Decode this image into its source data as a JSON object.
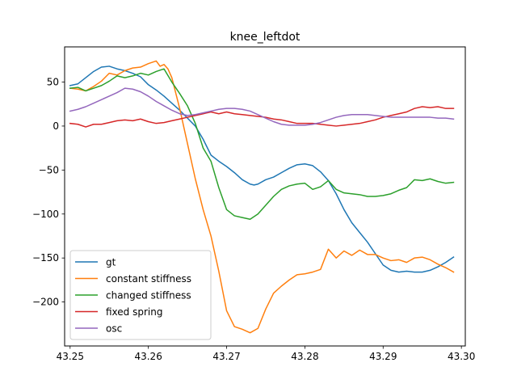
{
  "chart_data": {
    "type": "line",
    "title": "knee_leftdot",
    "xlabel": "",
    "ylabel": "",
    "xlim": [
      43.2493,
      43.3005
    ],
    "ylim": [
      -250,
      90
    ],
    "xticks": [
      43.25,
      43.26,
      43.27,
      43.28,
      43.29,
      43.3
    ],
    "xtick_labels": [
      "43.25",
      "43.26",
      "43.27",
      "43.28",
      "43.29",
      "43.30"
    ],
    "yticks": [
      50,
      0,
      -50,
      -100,
      -150,
      -200
    ],
    "ytick_labels": [
      "50",
      "0",
      "−50",
      "−100",
      "−150",
      "−200"
    ],
    "grid": false,
    "legend_position": "lower-left",
    "series": [
      {
        "name": "gt",
        "color": "#1f77b4",
        "points": [
          [
            43.25,
            46
          ],
          [
            43.251,
            48
          ],
          [
            43.252,
            55
          ],
          [
            43.253,
            62
          ],
          [
            43.254,
            67
          ],
          [
            43.255,
            68
          ],
          [
            43.256,
            65
          ],
          [
            43.257,
            63
          ],
          [
            43.258,
            60
          ],
          [
            43.259,
            56
          ],
          [
            43.26,
            47
          ],
          [
            43.261,
            41
          ],
          [
            43.262,
            34
          ],
          [
            43.263,
            26
          ],
          [
            43.264,
            18
          ],
          [
            43.265,
            9
          ],
          [
            43.266,
            0
          ],
          [
            43.267,
            -15
          ],
          [
            43.268,
            -33
          ],
          [
            43.269,
            -40
          ],
          [
            43.27,
            -46
          ],
          [
            43.271,
            -53
          ],
          [
            43.272,
            -61
          ],
          [
            43.273,
            -66
          ],
          [
            43.2735,
            -67
          ],
          [
            43.274,
            -66
          ],
          [
            43.275,
            -61
          ],
          [
            43.276,
            -58
          ],
          [
            43.277,
            -53
          ],
          [
            43.278,
            -48
          ],
          [
            43.279,
            -44
          ],
          [
            43.28,
            -43
          ],
          [
            43.281,
            -45
          ],
          [
            43.282,
            -52
          ],
          [
            43.283,
            -62
          ],
          [
            43.284,
            -77
          ],
          [
            43.285,
            -95
          ],
          [
            43.286,
            -110
          ],
          [
            43.287,
            -121
          ],
          [
            43.288,
            -132
          ],
          [
            43.289,
            -145
          ],
          [
            43.29,
            -158
          ],
          [
            43.291,
            -164
          ],
          [
            43.292,
            -166
          ],
          [
            43.293,
            -165
          ],
          [
            43.294,
            -166
          ],
          [
            43.295,
            -166
          ],
          [
            43.296,
            -164
          ],
          [
            43.297,
            -160
          ],
          [
            43.298,
            -155
          ],
          [
            43.299,
            -149
          ]
        ]
      },
      {
        "name": "constant stiffness",
        "color": "#ff7f0e",
        "points": [
          [
            43.25,
            43
          ],
          [
            43.251,
            42
          ],
          [
            43.252,
            40
          ],
          [
            43.253,
            45
          ],
          [
            43.254,
            51
          ],
          [
            43.255,
            60
          ],
          [
            43.256,
            58
          ],
          [
            43.257,
            63
          ],
          [
            43.258,
            66
          ],
          [
            43.259,
            67
          ],
          [
            43.26,
            71
          ],
          [
            43.261,
            74
          ],
          [
            43.2615,
            68
          ],
          [
            43.262,
            70
          ],
          [
            43.2625,
            65
          ],
          [
            43.263,
            55
          ],
          [
            43.264,
            20
          ],
          [
            43.265,
            -20
          ],
          [
            43.266,
            -60
          ],
          [
            43.267,
            -95
          ],
          [
            43.268,
            -125
          ],
          [
            43.269,
            -165
          ],
          [
            43.27,
            -210
          ],
          [
            43.271,
            -228
          ],
          [
            43.272,
            -231
          ],
          [
            43.273,
            -235
          ],
          [
            43.274,
            -230
          ],
          [
            43.275,
            -208
          ],
          [
            43.276,
            -190
          ],
          [
            43.277,
            -182
          ],
          [
            43.278,
            -175
          ],
          [
            43.279,
            -169
          ],
          [
            43.28,
            -168
          ],
          [
            43.281,
            -166
          ],
          [
            43.282,
            -163
          ],
          [
            43.283,
            -140
          ],
          [
            43.284,
            -150
          ],
          [
            43.285,
            -142
          ],
          [
            43.286,
            -147
          ],
          [
            43.287,
            -141
          ],
          [
            43.288,
            -146
          ],
          [
            43.289,
            -146
          ],
          [
            43.29,
            -150
          ],
          [
            43.291,
            -153
          ],
          [
            43.292,
            -152
          ],
          [
            43.293,
            -155
          ],
          [
            43.294,
            -150
          ],
          [
            43.295,
            -149
          ],
          [
            43.296,
            -152
          ],
          [
            43.297,
            -157
          ],
          [
            43.298,
            -161
          ],
          [
            43.299,
            -166
          ]
        ]
      },
      {
        "name": "changed stiffness",
        "color": "#2ca02c",
        "points": [
          [
            43.25,
            43
          ],
          [
            43.251,
            44
          ],
          [
            43.252,
            40
          ],
          [
            43.253,
            43
          ],
          [
            43.254,
            46
          ],
          [
            43.255,
            51
          ],
          [
            43.256,
            57
          ],
          [
            43.257,
            55
          ],
          [
            43.258,
            57
          ],
          [
            43.259,
            60
          ],
          [
            43.26,
            58
          ],
          [
            43.261,
            62
          ],
          [
            43.262,
            65
          ],
          [
            43.263,
            50
          ],
          [
            43.264,
            37
          ],
          [
            43.265,
            23
          ],
          [
            43.266,
            3
          ],
          [
            43.267,
            -25
          ],
          [
            43.268,
            -40
          ],
          [
            43.269,
            -70
          ],
          [
            43.27,
            -95
          ],
          [
            43.271,
            -102
          ],
          [
            43.272,
            -104
          ],
          [
            43.273,
            -106
          ],
          [
            43.274,
            -100
          ],
          [
            43.275,
            -90
          ],
          [
            43.276,
            -80
          ],
          [
            43.277,
            -72
          ],
          [
            43.278,
            -68
          ],
          [
            43.279,
            -66
          ],
          [
            43.28,
            -65
          ],
          [
            43.281,
            -72
          ],
          [
            43.282,
            -69
          ],
          [
            43.283,
            -62
          ],
          [
            43.284,
            -72
          ],
          [
            43.285,
            -76
          ],
          [
            43.286,
            -77
          ],
          [
            43.287,
            -78
          ],
          [
            43.288,
            -80
          ],
          [
            43.289,
            -80
          ],
          [
            43.29,
            -79
          ],
          [
            43.291,
            -77
          ],
          [
            43.292,
            -73
          ],
          [
            43.293,
            -70
          ],
          [
            43.294,
            -61
          ],
          [
            43.295,
            -62
          ],
          [
            43.296,
            -60
          ],
          [
            43.297,
            -63
          ],
          [
            43.298,
            -65
          ],
          [
            43.299,
            -64
          ]
        ]
      },
      {
        "name": "fixed spring",
        "color": "#d62728",
        "points": [
          [
            43.25,
            3
          ],
          [
            43.251,
            2
          ],
          [
            43.252,
            -1
          ],
          [
            43.253,
            2
          ],
          [
            43.254,
            2
          ],
          [
            43.255,
            4
          ],
          [
            43.256,
            6
          ],
          [
            43.257,
            7
          ],
          [
            43.258,
            6
          ],
          [
            43.259,
            8
          ],
          [
            43.26,
            5
          ],
          [
            43.261,
            3
          ],
          [
            43.262,
            4
          ],
          [
            43.263,
            6
          ],
          [
            43.264,
            8
          ],
          [
            43.265,
            10
          ],
          [
            43.266,
            12
          ],
          [
            43.267,
            14
          ],
          [
            43.268,
            16
          ],
          [
            43.269,
            14
          ],
          [
            43.27,
            16
          ],
          [
            43.271,
            14
          ],
          [
            43.272,
            13
          ],
          [
            43.273,
            12
          ],
          [
            43.274,
            11
          ],
          [
            43.275,
            10
          ],
          [
            43.276,
            8
          ],
          [
            43.277,
            7
          ],
          [
            43.278,
            5
          ],
          [
            43.279,
            3
          ],
          [
            43.28,
            3
          ],
          [
            43.281,
            3
          ],
          [
            43.282,
            2
          ],
          [
            43.283,
            1
          ],
          [
            43.284,
            0
          ],
          [
            43.285,
            1
          ],
          [
            43.286,
            2
          ],
          [
            43.287,
            3
          ],
          [
            43.288,
            5
          ],
          [
            43.289,
            7
          ],
          [
            43.29,
            10
          ],
          [
            43.291,
            12
          ],
          [
            43.292,
            14
          ],
          [
            43.293,
            16
          ],
          [
            43.294,
            20
          ],
          [
            43.295,
            22
          ],
          [
            43.296,
            21
          ],
          [
            43.297,
            22
          ],
          [
            43.298,
            20
          ],
          [
            43.299,
            20
          ]
        ]
      },
      {
        "name": "osc",
        "color": "#9467bd",
        "points": [
          [
            43.25,
            17
          ],
          [
            43.251,
            19
          ],
          [
            43.252,
            22
          ],
          [
            43.253,
            26
          ],
          [
            43.254,
            30
          ],
          [
            43.255,
            34
          ],
          [
            43.256,
            38
          ],
          [
            43.257,
            43
          ],
          [
            43.258,
            42
          ],
          [
            43.259,
            39
          ],
          [
            43.26,
            34
          ],
          [
            43.261,
            28
          ],
          [
            43.262,
            23
          ],
          [
            43.263,
            18
          ],
          [
            43.264,
            14
          ],
          [
            43.265,
            12
          ],
          [
            43.266,
            13
          ],
          [
            43.267,
            15
          ],
          [
            43.268,
            17
          ],
          [
            43.269,
            19
          ],
          [
            43.27,
            20
          ],
          [
            43.271,
            20
          ],
          [
            43.272,
            19
          ],
          [
            43.273,
            17
          ],
          [
            43.274,
            13
          ],
          [
            43.275,
            9
          ],
          [
            43.276,
            5
          ],
          [
            43.277,
            2
          ],
          [
            43.278,
            1
          ],
          [
            43.279,
            1
          ],
          [
            43.28,
            1
          ],
          [
            43.281,
            2
          ],
          [
            43.282,
            4
          ],
          [
            43.283,
            7
          ],
          [
            43.284,
            10
          ],
          [
            43.285,
            12
          ],
          [
            43.286,
            13
          ],
          [
            43.287,
            13
          ],
          [
            43.288,
            13
          ],
          [
            43.289,
            12
          ],
          [
            43.29,
            11
          ],
          [
            43.291,
            10
          ],
          [
            43.292,
            10
          ],
          [
            43.293,
            10
          ],
          [
            43.294,
            10
          ],
          [
            43.295,
            10
          ],
          [
            43.296,
            10
          ],
          [
            43.297,
            9
          ],
          [
            43.298,
            9
          ],
          [
            43.299,
            8
          ]
        ]
      }
    ]
  }
}
